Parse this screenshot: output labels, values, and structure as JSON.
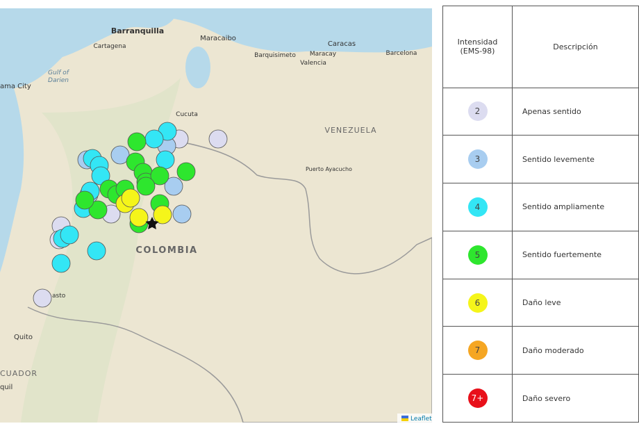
{
  "map": {
    "places": [
      "Barranquilla",
      "Cartagena",
      "Maracaibo",
      "Caracas",
      "Barquisimeto",
      "Maracay",
      "Valencia",
      "Barcelona",
      "Cucuta",
      "Puerto Ayacucho",
      "Quito",
      "ama City",
      "asto",
      "quil"
    ],
    "water": [
      "Gulf of",
      "Darien"
    ],
    "countries": [
      "VENEZUELA",
      "COLOMBIA",
      "CUADOR"
    ],
    "attribution": "Leaflet"
  },
  "table": {
    "header": [
      "Intensidad (EMS-98)",
      "Descripción"
    ],
    "rows": [
      [
        "2",
        "Apenas sentido"
      ],
      [
        "3",
        "Sentido levemente"
      ],
      [
        "4",
        "Sentido ampliamente"
      ],
      [
        "5",
        "Sentido fuertemente"
      ],
      [
        "6",
        "Daño leve"
      ],
      [
        "7",
        "Daño moderado"
      ],
      [
        "7+",
        "Daño severo"
      ]
    ]
  }
}
